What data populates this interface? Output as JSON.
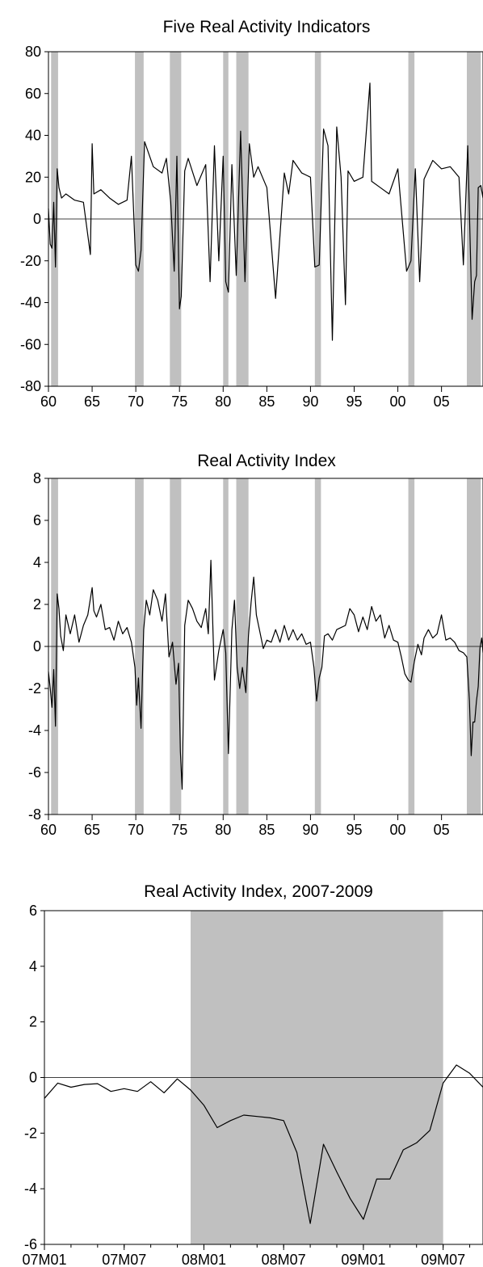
{
  "chart_data": [
    {
      "type": "line",
      "title": "Five Real Activity Indicators",
      "xlabel": "",
      "ylabel": "",
      "xlim": [
        1960,
        2009.75
      ],
      "ylim": [
        -80,
        80
      ],
      "yticks": [
        -80,
        -60,
        -40,
        -20,
        0,
        20,
        40,
        60,
        80
      ],
      "xticks": [
        1960,
        1965,
        1970,
        1975,
        1980,
        1985,
        1990,
        1995,
        2000,
        2005
      ],
      "xtick_labels": [
        "60",
        "65",
        "70",
        "75",
        "80",
        "85",
        "90",
        "95",
        "00",
        "05"
      ],
      "zero_line": true,
      "grid": false,
      "series_style": "#000000",
      "shade_color": "#c0c0c0",
      "recessions": [
        [
          1960.3,
          1961.1
        ],
        [
          1969.9,
          1970.9
        ],
        [
          1973.9,
          1975.2
        ],
        [
          1980.0,
          1980.6
        ],
        [
          1981.5,
          1982.9
        ],
        [
          1990.5,
          1991.2
        ],
        [
          2001.2,
          2001.9
        ],
        [
          2007.9,
          2009.5
        ]
      ],
      "series": [
        {
          "x": [
            1960.0,
            1960.2,
            1960.4,
            1960.6,
            1960.8,
            1961.0,
            1961.2,
            1961.5,
            1962.0,
            1963.0,
            1964.0,
            1964.8,
            1965.0,
            1965.2,
            1966.0,
            1967.0,
            1968.0,
            1969.0,
            1969.5,
            1970.0,
            1970.3,
            1970.6,
            1971.0,
            1972.0,
            1973.0,
            1973.5,
            1974.0,
            1974.4,
            1974.7,
            1975.0,
            1975.2,
            1975.6,
            1976.0,
            1977.0,
            1978.0,
            1978.5,
            1979.0,
            1979.5,
            1980.0,
            1980.3,
            1980.6,
            1981.0,
            1981.5,
            1982.0,
            1982.5,
            1983.0,
            1983.5,
            1984.0,
            1985.0,
            1986.0,
            1987.0,
            1987.5,
            1988.0,
            1989.0,
            1990.0,
            1990.5,
            1991.0,
            1991.5,
            1992.0,
            1992.5,
            1993.0,
            1993.5,
            1994.0,
            1994.3,
            1995.0,
            1996.0,
            1996.8,
            1997.0,
            1998.0,
            1999.0,
            2000.0,
            2001.0,
            2001.5,
            2002.0,
            2002.5,
            2003.0,
            2004.0,
            2005.0,
            2006.0,
            2007.0,
            2007.5,
            2008.0,
            2008.5,
            2008.8,
            2009.0,
            2009.2,
            2009.5,
            2009.75
          ],
          "y": [
            5,
            -12,
            -14,
            8,
            -23,
            24,
            15,
            10,
            12,
            9,
            8,
            -17,
            36,
            12,
            14,
            10,
            7,
            9,
            30,
            -22,
            -25,
            -15,
            37,
            25,
            22,
            29,
            8,
            -25,
            30,
            -43,
            -37,
            23,
            29,
            16,
            26,
            -30,
            35,
            -20,
            30,
            -30,
            -35,
            26,
            -27,
            42,
            -30,
            36,
            20,
            25,
            15,
            -38,
            22,
            12,
            28,
            22,
            20,
            -23,
            -22,
            43,
            35,
            -58,
            44,
            20,
            -41,
            23,
            18,
            20,
            65,
            18,
            15,
            12,
            24,
            -25,
            -20,
            24,
            -30,
            19,
            28,
            24,
            25,
            20,
            -22,
            35,
            -48,
            -30,
            -27,
            15,
            16,
            10
          ]
        }
      ]
    },
    {
      "type": "line",
      "title": "Real Activity Index",
      "xlabel": "",
      "ylabel": "",
      "xlim": [
        1960,
        2009.75
      ],
      "ylim": [
        -8,
        8
      ],
      "yticks": [
        -8,
        -6,
        -4,
        -2,
        0,
        2,
        4,
        6,
        8
      ],
      "xticks": [
        1960,
        1965,
        1970,
        1975,
        1980,
        1985,
        1990,
        1995,
        2000,
        2005
      ],
      "xtick_labels": [
        "60",
        "65",
        "70",
        "75",
        "80",
        "85",
        "90",
        "95",
        "00",
        "05"
      ],
      "zero_line": true,
      "grid": false,
      "series_style": "#000000",
      "shade_color": "#c0c0c0",
      "recessions": [
        [
          1960.3,
          1961.1
        ],
        [
          1969.9,
          1970.9
        ],
        [
          1973.9,
          1975.2
        ],
        [
          1980.0,
          1980.6
        ],
        [
          1981.5,
          1982.9
        ],
        [
          1990.5,
          1991.2
        ],
        [
          2001.2,
          2001.9
        ],
        [
          2007.9,
          2009.5
        ]
      ],
      "series": [
        {
          "x": [
            1960.0,
            1960.2,
            1960.4,
            1960.6,
            1960.8,
            1961.0,
            1961.2,
            1961.4,
            1961.7,
            1962.0,
            1962.5,
            1963.0,
            1963.5,
            1964.0,
            1964.5,
            1965.0,
            1965.2,
            1965.5,
            1966.0,
            1966.5,
            1967.0,
            1967.5,
            1968.0,
            1968.5,
            1969.0,
            1969.5,
            1969.9,
            1970.1,
            1970.3,
            1970.6,
            1970.9,
            1971.2,
            1971.6,
            1972.0,
            1972.5,
            1973.0,
            1973.4,
            1973.8,
            1974.2,
            1974.6,
            1974.9,
            1975.1,
            1975.3,
            1975.6,
            1976.0,
            1976.5,
            1977.0,
            1977.5,
            1978.0,
            1978.3,
            1978.6,
            1979.0,
            1979.5,
            1980.0,
            1980.3,
            1980.6,
            1981.0,
            1981.3,
            1981.6,
            1981.9,
            1982.2,
            1982.6,
            1982.9,
            1983.2,
            1983.5,
            1983.8,
            1984.2,
            1984.6,
            1985.0,
            1985.5,
            1986.0,
            1986.5,
            1987.0,
            1987.5,
            1988.0,
            1988.5,
            1989.0,
            1989.5,
            1990.0,
            1990.4,
            1990.7,
            1991.0,
            1991.3,
            1991.6,
            1992.0,
            1992.5,
            1993.0,
            1993.5,
            1994.0,
            1994.5,
            1995.0,
            1995.5,
            1996.0,
            1996.5,
            1997.0,
            1997.5,
            1998.0,
            1998.5,
            1999.0,
            1999.5,
            2000.0,
            2000.4,
            2000.8,
            2001.2,
            2001.5,
            2001.9,
            2002.3,
            2002.7,
            2003.0,
            2003.5,
            2004.0,
            2004.5,
            2005.0,
            2005.5,
            2006.0,
            2006.5,
            2007.0,
            2007.5,
            2007.9,
            2008.2,
            2008.4,
            2008.6,
            2008.8,
            2009.0,
            2009.2,
            2009.4,
            2009.6,
            2009.75
          ],
          "y": [
            -1.2,
            -2.0,
            -2.9,
            -1.1,
            -3.8,
            2.5,
            1.8,
            0.5,
            -0.2,
            1.5,
            0.6,
            1.5,
            0.2,
            1.0,
            1.5,
            2.8,
            1.7,
            1.4,
            2.0,
            0.8,
            0.9,
            0.3,
            1.2,
            0.6,
            0.9,
            0.2,
            -1.0,
            -2.8,
            -1.5,
            -3.9,
            0.8,
            2.2,
            1.5,
            2.7,
            2.2,
            1.2,
            2.5,
            -0.5,
            0.2,
            -1.8,
            -0.8,
            -5.0,
            -6.8,
            1.0,
            2.2,
            1.8,
            1.2,
            0.9,
            1.8,
            0.6,
            4.1,
            -1.6,
            -0.2,
            0.8,
            -0.3,
            -5.1,
            0.8,
            2.2,
            -1.0,
            -2.0,
            -1.0,
            -2.2,
            0.5,
            2.1,
            3.3,
            1.5,
            0.7,
            -0.1,
            0.3,
            0.2,
            0.8,
            0.2,
            1.0,
            0.3,
            0.8,
            0.3,
            0.6,
            0.1,
            0.2,
            -1.0,
            -2.6,
            -1.5,
            -1.0,
            0.5,
            0.6,
            0.3,
            0.8,
            0.9,
            1.0,
            1.8,
            1.5,
            0.7,
            1.4,
            0.8,
            1.9,
            1.2,
            1.5,
            0.4,
            1.0,
            0.3,
            0.2,
            -0.5,
            -1.3,
            -1.6,
            -1.7,
            -0.7,
            0.1,
            -0.4,
            0.4,
            0.8,
            0.4,
            0.6,
            1.5,
            0.3,
            0.4,
            0.2,
            -0.2,
            -0.3,
            -0.5,
            -2.6,
            -5.2,
            -3.6,
            -3.6,
            -2.6,
            -1.9,
            -0.1,
            0.4,
            -0.3
          ]
        }
      ]
    },
    {
      "type": "line",
      "title": "Real Activity Index, 2007-2009",
      "xlabel": "",
      "ylabel": "",
      "xlim": [
        0,
        33
      ],
      "ylim": [
        -6,
        6
      ],
      "yticks": [
        -6,
        -4,
        -2,
        0,
        2,
        4,
        6
      ],
      "xticks": [
        0,
        6,
        12,
        18,
        24,
        30
      ],
      "xtick_labels": [
        "07M01",
        "07M07",
        "08M01",
        "08M07",
        "09M01",
        "09M07"
      ],
      "minor_xticks": [
        0,
        2,
        4,
        6,
        8,
        10,
        12,
        14,
        16,
        18,
        20,
        22,
        24,
        26,
        28,
        30,
        32
      ],
      "zero_line": true,
      "grid": false,
      "series_style": "#000000",
      "shade_color": "#c0c0c0",
      "recessions": [
        [
          11,
          30
        ]
      ],
      "series": [
        {
          "x": [
            0,
            1,
            2,
            3,
            4,
            5,
            6,
            7,
            8,
            9,
            10,
            11,
            12,
            13,
            14,
            15,
            16,
            17,
            18,
            19,
            20,
            21,
            22,
            23,
            24,
            25,
            26,
            27,
            28,
            29,
            30,
            31,
            32,
            33
          ],
          "y": [
            -0.75,
            -0.2,
            -0.35,
            -0.25,
            -0.22,
            -0.5,
            -0.4,
            -0.5,
            -0.15,
            -0.55,
            -0.05,
            -0.45,
            -1.0,
            -1.8,
            -1.55,
            -1.35,
            -1.4,
            -1.45,
            -1.55,
            -2.7,
            -5.25,
            -2.4,
            -3.4,
            -4.35,
            -5.1,
            -3.65,
            -3.65,
            -2.6,
            -2.35,
            -1.9,
            -0.2,
            0.45,
            0.15,
            -0.35
          ]
        }
      ]
    }
  ]
}
